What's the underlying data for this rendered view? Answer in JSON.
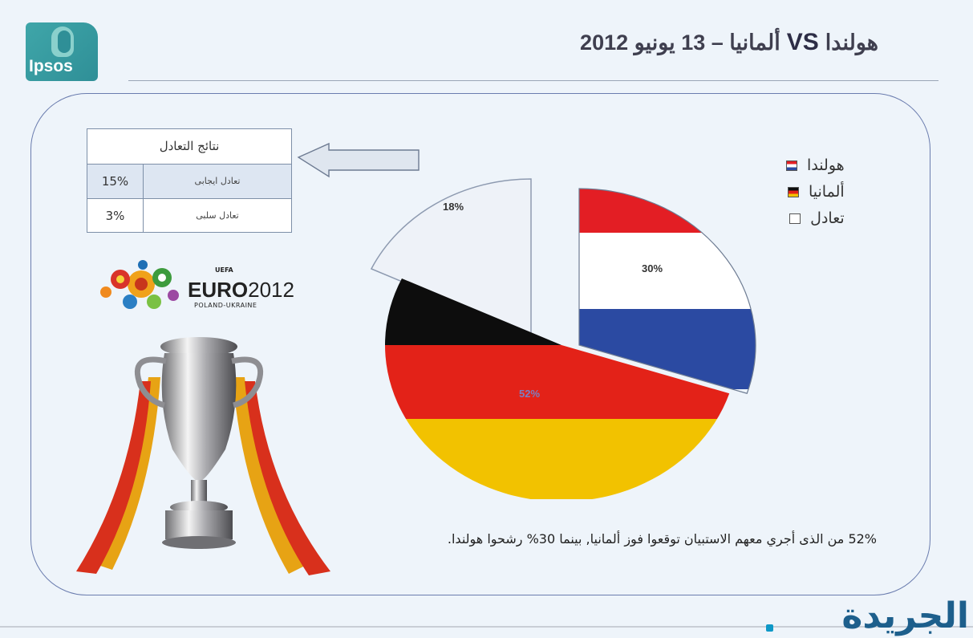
{
  "header": {
    "logo_text": "Ipsos",
    "title_main": "ألمانيا – 13 يونيو 2012",
    "title_vs": "VS",
    "title_team": "هولندا"
  },
  "table": {
    "title": "نتائج التعادل",
    "rows": [
      {
        "pct": "15%",
        "label": "تعادل ايجابى"
      },
      {
        "pct": "3%",
        "label": "تعادل سلبى"
      }
    ]
  },
  "legend": {
    "items": [
      "هولندا",
      "ألمانيا",
      "تعادل"
    ]
  },
  "euro_logo": {
    "uefa": "UEFA",
    "euro": "EURO",
    "year": "2012",
    "sub": "POLAND-UKRAINE"
  },
  "caption": "52% من الذى أجري معهم الاستبيان توقعوا فوز ألمانيا, بينما 30% رشحوا هولندا.",
  "brand": "الجريدة",
  "colors": {
    "nl_red": "#e31e24",
    "nl_white": "#ffffff",
    "nl_blue": "#2b4aa2",
    "de_black": "#0d0d0d",
    "de_red": "#e32218",
    "de_gold": "#f2c200",
    "draw": "#eef2f8"
  },
  "chart_data": {
    "type": "pie",
    "title": "",
    "labels": [
      "هولندا",
      "ألمانيا",
      "تعادل"
    ],
    "values": [
      30,
      52,
      18
    ],
    "value_labels": [
      "30%",
      "52%",
      "18%"
    ],
    "legend": "right",
    "exploded": [
      true,
      false,
      true
    ]
  }
}
